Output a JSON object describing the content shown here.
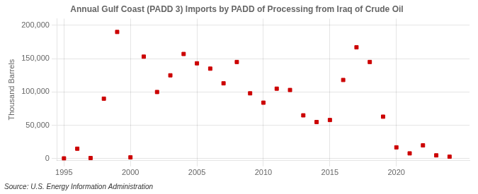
{
  "chart_data": {
    "type": "scatter",
    "title": "Annual Gulf Coast (PADD 3) Imports by PADD of Processing from Iraq of Crude Oil",
    "ylabel": "Thousand Barrels",
    "source": "Source: U.S. Energy Information Administration",
    "x": [
      1995,
      1996,
      1997,
      1998,
      1999,
      2000,
      2001,
      2002,
      2003,
      2004,
      2005,
      2006,
      2007,
      2008,
      2009,
      2010,
      2011,
      2012,
      2013,
      2014,
      2015,
      2016,
      2017,
      2018,
      2019,
      2020,
      2021,
      2022,
      2023,
      2024
    ],
    "values": [
      500,
      15000,
      1000,
      90000,
      190000,
      2000,
      153000,
      100000,
      125000,
      157000,
      143000,
      135000,
      113000,
      145000,
      98000,
      84000,
      105000,
      103000,
      65000,
      55000,
      58000,
      118000,
      167000,
      145000,
      63000,
      17000,
      8000,
      20000,
      5000,
      3000
    ],
    "color": "#cc0000",
    "marker": "square",
    "xlim": [
      1994.5,
      2025.5
    ],
    "xticks": [
      1995,
      2000,
      2005,
      2010,
      2015,
      2020
    ],
    "ylim": [
      -3000,
      210000
    ],
    "yticks": [
      0,
      {
        "value": 50000,
        "label": "50,000"
      },
      {
        "value": 100000,
        "label": "100,000"
      },
      {
        "value": 150000,
        "label": "150,000"
      },
      {
        "value": 200000,
        "label": "200,000"
      }
    ],
    "grid": true
  }
}
